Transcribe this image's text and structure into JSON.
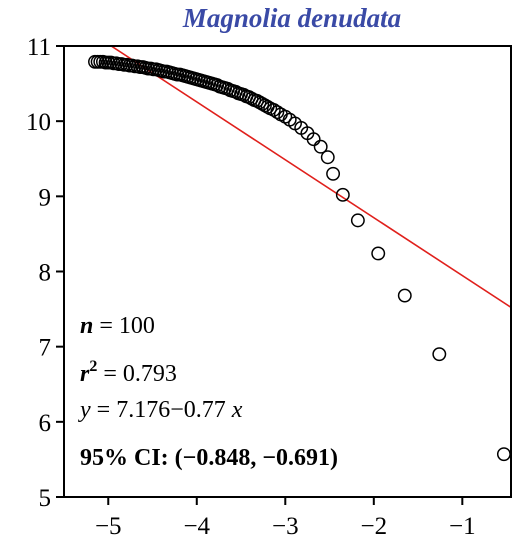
{
  "chart_data": {
    "type": "scatter",
    "title": "Magnolia denudata",
    "xlabel": "",
    "ylabel": "",
    "xlim": [
      -5.5,
      -0.45
    ],
    "ylim": [
      5,
      11
    ],
    "x_ticks": [
      -5,
      -4,
      -3,
      -2,
      -1
    ],
    "x_tick_labels": [
      "−5",
      "−4",
      "−3",
      "−2",
      "−1"
    ],
    "y_ticks": [
      5,
      6,
      7,
      8,
      9,
      10,
      11
    ],
    "y_tick_labels": [
      "5",
      "6",
      "7",
      "8",
      "9",
      "10",
      "11"
    ],
    "grid": false,
    "series": [
      {
        "marker": "open-circle",
        "points": [
          [
            -5.15,
            10.79
          ],
          [
            -5.12,
            10.79
          ],
          [
            -5.09,
            10.79
          ],
          [
            -5.06,
            10.79
          ],
          [
            -5.03,
            10.78
          ],
          [
            -5.0,
            10.78
          ],
          [
            -4.97,
            10.78
          ],
          [
            -4.94,
            10.77
          ],
          [
            -4.91,
            10.77
          ],
          [
            -4.88,
            10.76
          ],
          [
            -4.85,
            10.76
          ],
          [
            -4.82,
            10.75
          ],
          [
            -4.79,
            10.75
          ],
          [
            -4.76,
            10.74
          ],
          [
            -4.73,
            10.74
          ],
          [
            -4.7,
            10.73
          ],
          [
            -4.67,
            10.73
          ],
          [
            -4.64,
            10.72
          ],
          [
            -4.61,
            10.72
          ],
          [
            -4.58,
            10.71
          ],
          [
            -4.55,
            10.7
          ],
          [
            -4.52,
            10.7
          ],
          [
            -4.49,
            10.69
          ],
          [
            -4.46,
            10.69
          ],
          [
            -4.43,
            10.68
          ],
          [
            -4.4,
            10.67
          ],
          [
            -4.37,
            10.66
          ],
          [
            -4.34,
            10.66
          ],
          [
            -4.31,
            10.65
          ],
          [
            -4.28,
            10.64
          ],
          [
            -4.25,
            10.63
          ],
          [
            -4.22,
            10.62
          ],
          [
            -4.19,
            10.62
          ],
          [
            -4.16,
            10.61
          ],
          [
            -4.13,
            10.6
          ],
          [
            -4.1,
            10.59
          ],
          [
            -4.07,
            10.58
          ],
          [
            -4.04,
            10.57
          ],
          [
            -4.01,
            10.56
          ],
          [
            -3.98,
            10.55
          ],
          [
            -3.95,
            10.54
          ],
          [
            -3.92,
            10.53
          ],
          [
            -3.89,
            10.52
          ],
          [
            -3.86,
            10.51
          ],
          [
            -3.83,
            10.5
          ],
          [
            -3.8,
            10.49
          ],
          [
            -3.77,
            10.48
          ],
          [
            -3.74,
            10.46
          ],
          [
            -3.71,
            10.45
          ],
          [
            -3.68,
            10.44
          ],
          [
            -3.65,
            10.43
          ],
          [
            -3.62,
            10.41
          ],
          [
            -3.59,
            10.4
          ],
          [
            -3.56,
            10.39
          ],
          [
            -3.53,
            10.37
          ],
          [
            -3.5,
            10.36
          ],
          [
            -3.47,
            10.35
          ],
          [
            -3.44,
            10.33
          ],
          [
            -3.41,
            10.32
          ],
          [
            -3.38,
            10.3
          ],
          [
            -3.35,
            10.28
          ],
          [
            -3.32,
            10.27
          ],
          [
            -3.29,
            10.25
          ],
          [
            -3.26,
            10.23
          ],
          [
            -3.23,
            10.21
          ],
          [
            -3.2,
            10.19
          ],
          [
            -3.17,
            10.17
          ],
          [
            -3.13,
            10.15
          ],
          [
            -3.09,
            10.12
          ],
          [
            -3.05,
            10.09
          ],
          [
            -3.0,
            10.06
          ],
          [
            -2.95,
            10.02
          ],
          [
            -2.89,
            9.97
          ],
          [
            -2.82,
            9.91
          ],
          [
            -2.75,
            9.84
          ],
          [
            -2.68,
            9.76
          ],
          [
            -2.6,
            9.66
          ],
          [
            -2.52,
            9.52
          ],
          [
            -2.46,
            9.3
          ],
          [
            -2.35,
            9.02
          ],
          [
            -2.18,
            8.68
          ],
          [
            -1.95,
            8.24
          ],
          [
            -1.65,
            7.68
          ],
          [
            -1.26,
            6.9
          ],
          [
            -0.53,
            5.57
          ]
        ]
      }
    ],
    "fit_line": {
      "color": "#e0201c",
      "intercept": 7.176,
      "slope": -0.77
    },
    "annotations": {
      "n": "100",
      "r2": "0.793",
      "equation": "7.176−0.77",
      "ci_label": "95% CI:",
      "ci_value": "(−0.848, −0.691)"
    },
    "colors": {
      "title": "#3a4aa6",
      "points": "#000000",
      "axes": "#000000"
    }
  }
}
